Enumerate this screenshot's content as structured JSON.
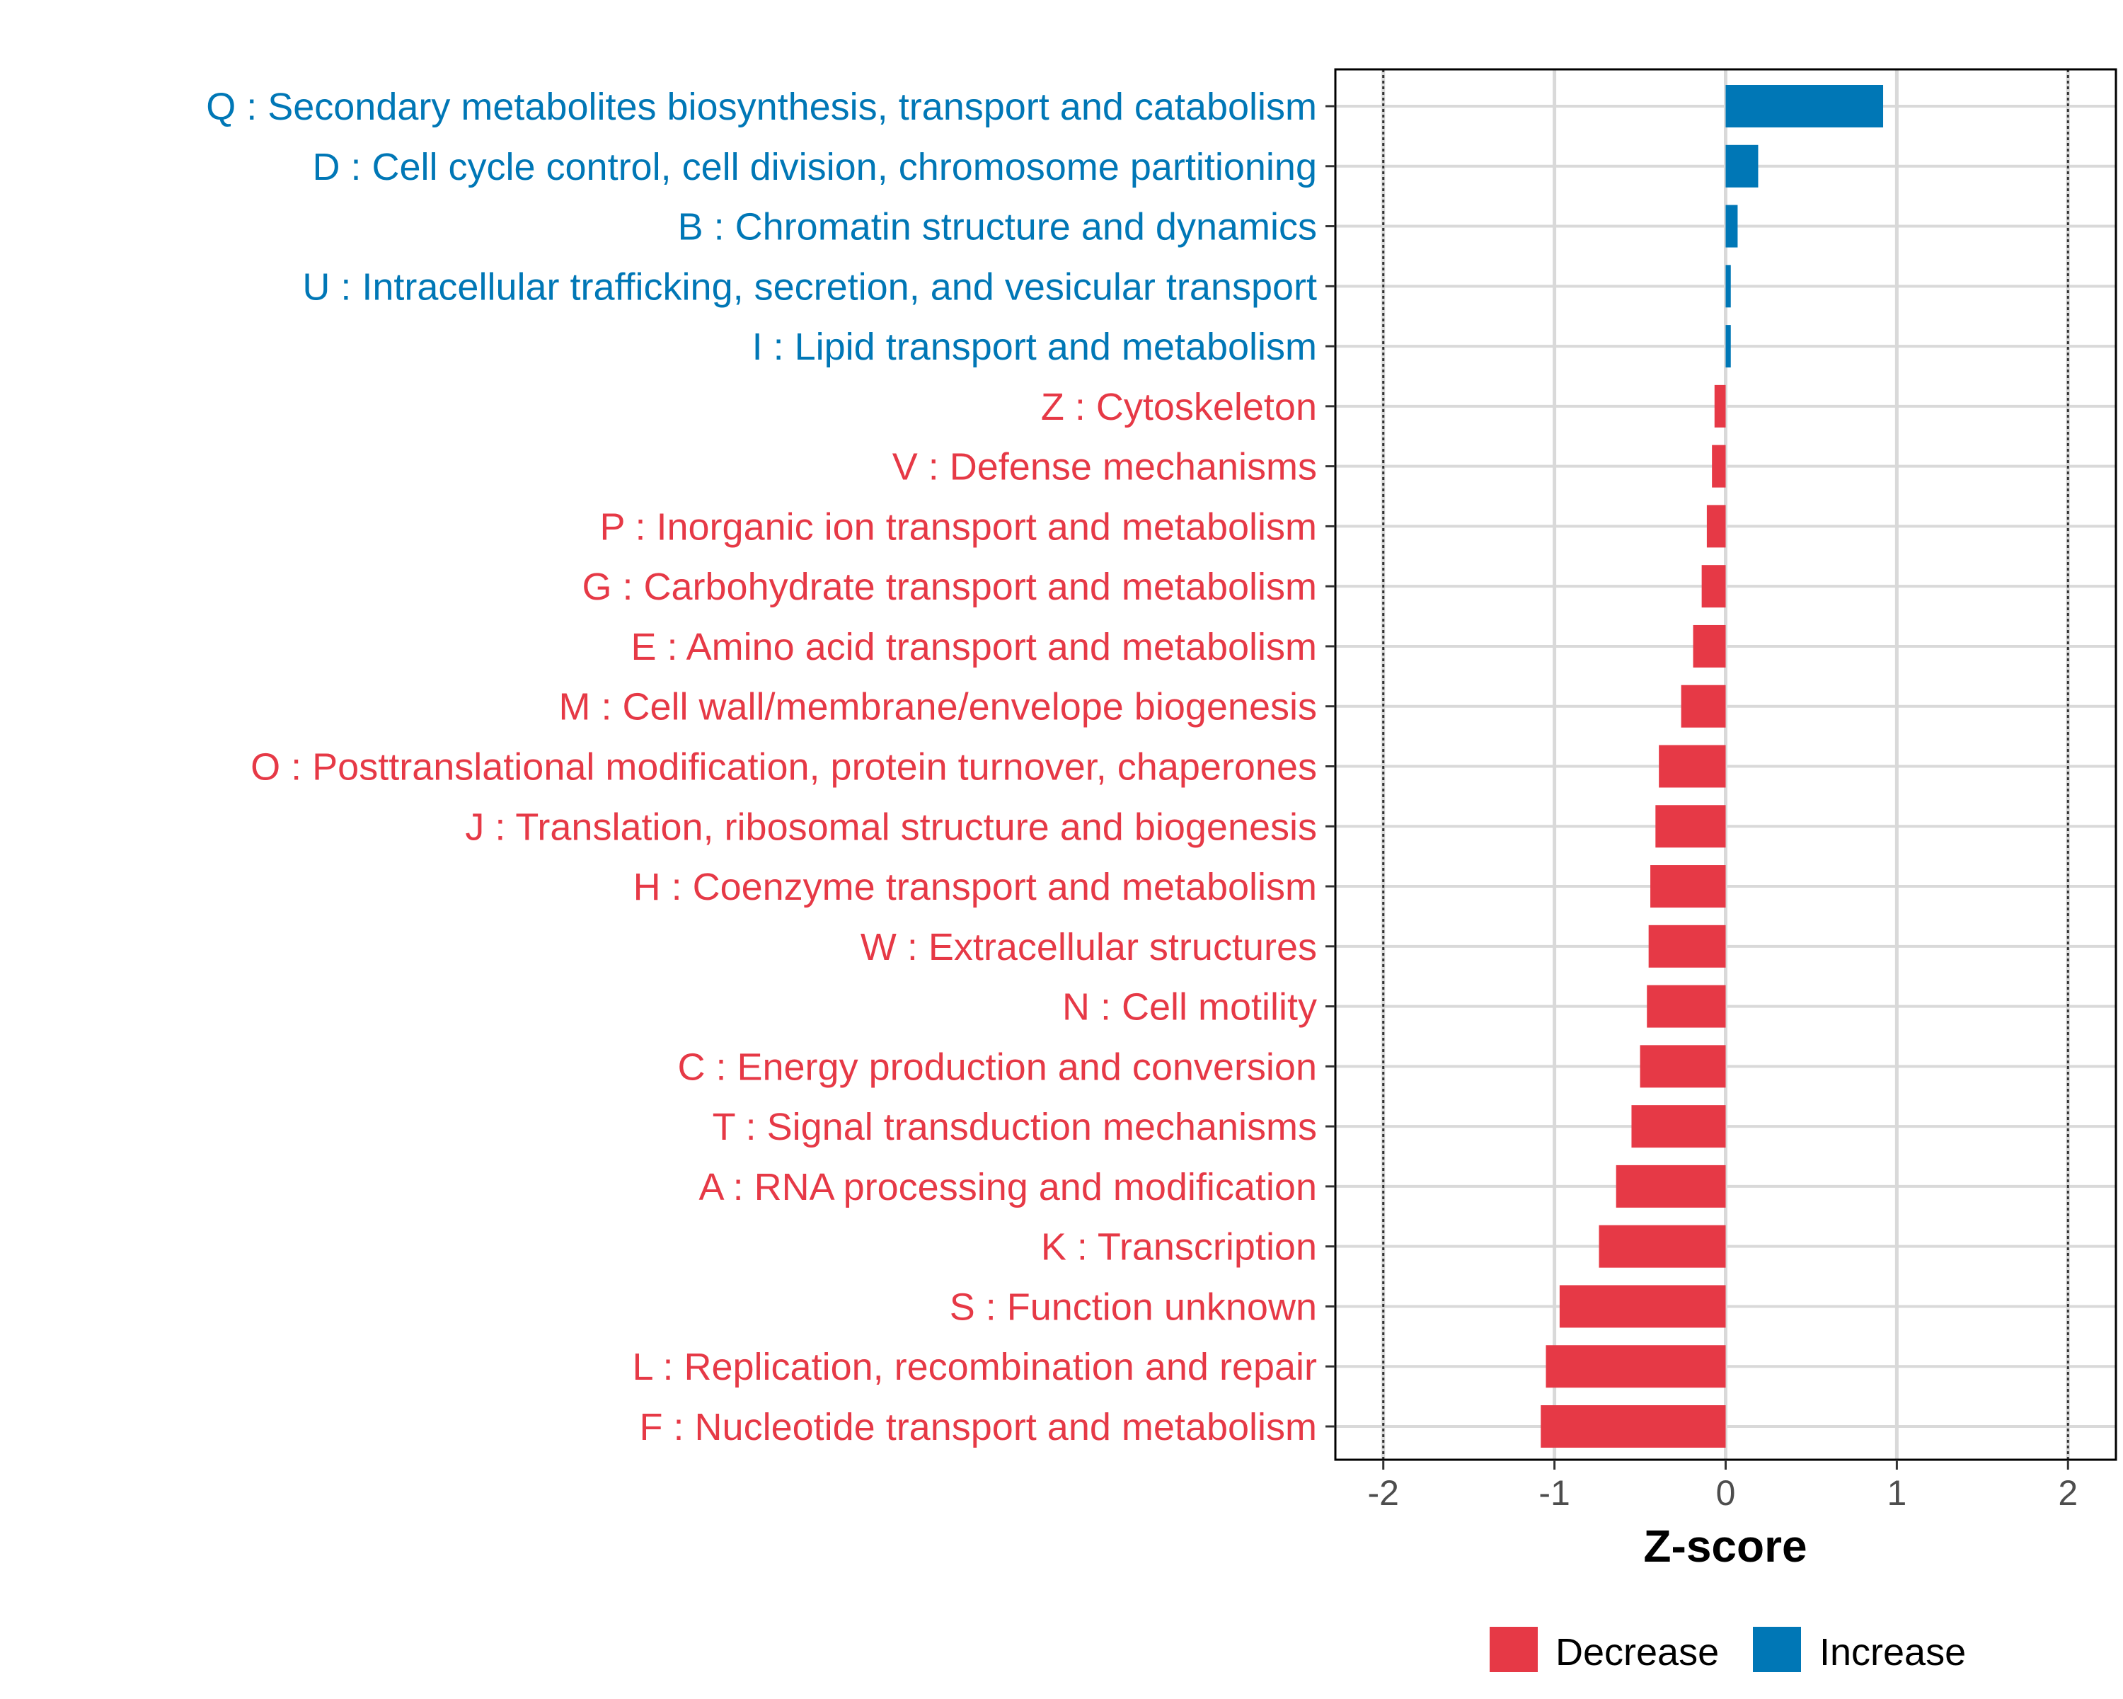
{
  "chart_data": {
    "type": "bar",
    "orientation": "horizontal",
    "title": "",
    "xlabel": "Z-score",
    "ylabel": "",
    "xlim": [
      -2.28,
      2.28
    ],
    "xticks": [
      -2,
      -1,
      0,
      1,
      2
    ],
    "xtick_labels": [
      "-2",
      "-1",
      "0",
      "1",
      "2"
    ],
    "reference_lines": [
      -2,
      2
    ],
    "grid": true,
    "legend_position": "bottom",
    "colors": {
      "Decrease": "#E63946",
      "Increase": "#0077B6"
    },
    "legend": [
      "Decrease",
      "Increase"
    ],
    "categories": [
      "Q : Secondary metabolites biosynthesis, transport and catabolism",
      "D : Cell cycle control, cell division, chromosome partitioning",
      "B : Chromatin structure and dynamics",
      "U : Intracellular trafficking, secretion, and vesicular transport",
      "I : Lipid transport and metabolism",
      "Z : Cytoskeleton",
      "V : Defense mechanisms",
      "P : Inorganic ion transport and metabolism",
      "G : Carbohydrate transport and metabolism",
      "E : Amino acid transport and metabolism",
      "M : Cell wall/membrane/envelope biogenesis",
      "O : Posttranslational modification, protein turnover, chaperones",
      "J : Translation, ribosomal structure and biogenesis",
      "H : Coenzyme transport and metabolism",
      "W : Extracellular structures",
      "N : Cell motility",
      "C : Energy production and conversion",
      "T : Signal transduction mechanisms",
      "A : RNA processing and modification",
      "K : Transcription",
      "S : Function unknown",
      "L : Replication, recombination and repair",
      "F : Nucleotide transport and metabolism"
    ],
    "values": [
      0.92,
      0.19,
      0.07,
      0.03,
      0.03,
      -0.065,
      -0.08,
      -0.11,
      -0.14,
      -0.19,
      -0.26,
      -0.39,
      -0.41,
      -0.44,
      -0.45,
      -0.46,
      -0.5,
      -0.55,
      -0.64,
      -0.74,
      -0.97,
      -1.05,
      -1.08
    ]
  }
}
